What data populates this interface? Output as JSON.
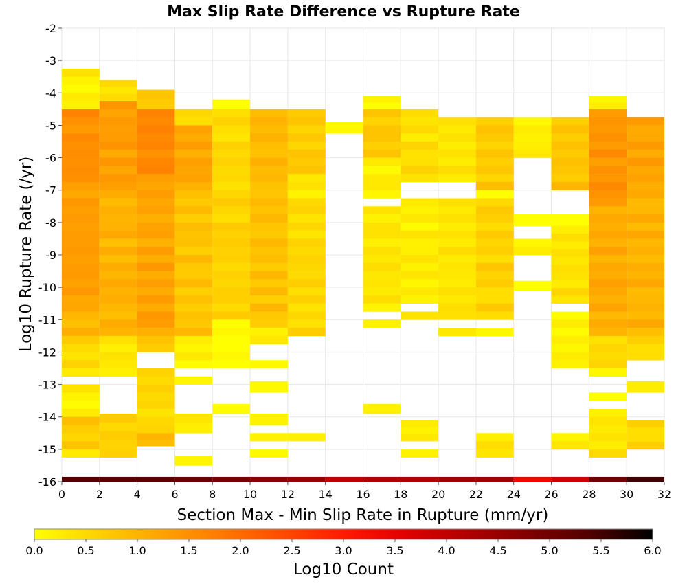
{
  "chart_data": {
    "type": "heatmap",
    "title": "Max Slip Rate Difference vs Rupture Rate",
    "xlabel": "Section Max - Min Slip Rate in Rupture (mm/yr)",
    "ylabel": "Log10 Rupture Rate (/yr)",
    "xlim": [
      0,
      32
    ],
    "ylim": [
      -16,
      -2
    ],
    "x_ticks": [
      "0",
      "2",
      "4",
      "6",
      "8",
      "10",
      "12",
      "14",
      "16",
      "18",
      "20",
      "22",
      "24",
      "26",
      "28",
      "30",
      "32"
    ],
    "y_ticks": [
      "-2",
      "-3",
      "-4",
      "-5",
      "-6",
      "-7",
      "-8",
      "-9",
      "-10",
      "-11",
      "-12",
      "-13",
      "-14",
      "-15",
      "-16"
    ],
    "x_bin_width": 2,
    "y_bin_height": 0.25,
    "grid": true,
    "colorbar": {
      "label": "Log10 Count",
      "min": 0.0,
      "max": 6.0,
      "ticks": [
        "0.0",
        "0.5",
        "1.0",
        "1.5",
        "2.0",
        "2.5",
        "3.0",
        "3.5",
        "4.0",
        "4.5",
        "5.0",
        "5.5",
        "6.0"
      ],
      "colors": [
        "#ffff00",
        "#ffd200",
        "#ffa500",
        "#ff7a00",
        "#ff4c00",
        "#ff1a00",
        "#e00000",
        "#b00000",
        "#800000",
        "#500000",
        "#000000"
      ]
    },
    "columns": [
      {
        "x0": 0,
        "ranges": [
          [
            -3.25,
            -4.5,
            0.3
          ],
          [
            -4.5,
            -6.5,
            1.6
          ],
          [
            -6.5,
            -10.5,
            1.4
          ],
          [
            -10.5,
            -11.5,
            1.1
          ],
          [
            -11.5,
            -12.5,
            0.6
          ],
          [
            -12.5,
            -12.75,
            0.2
          ],
          [
            -13,
            -14,
            0.3
          ],
          [
            -14,
            -15,
            0.8
          ],
          [
            -15,
            -15.25,
            0.2
          ]
        ]
      },
      {
        "x0": 2,
        "ranges": [
          [
            -3.6,
            -4.25,
            0.5
          ],
          [
            -4.25,
            -7,
            1.4
          ],
          [
            -7,
            -11.5,
            1.1
          ],
          [
            -11.5,
            -12.5,
            0.4
          ],
          [
            -12.5,
            -12.75,
            0.2
          ],
          [
            -13.9,
            -15.25,
            0.7
          ]
        ]
      },
      {
        "x0": 4,
        "ranges": [
          [
            -3.9,
            -4.5,
            0.8
          ],
          [
            -4.5,
            -6.5,
            1.7
          ],
          [
            -6.5,
            -11.5,
            1.3
          ],
          [
            -11.5,
            -12,
            0.8
          ],
          [
            -12.5,
            -14.5,
            0.6
          ],
          [
            -14.5,
            -14.9,
            1.0
          ]
        ]
      },
      {
        "x0": 6,
        "ranges": [
          [
            -4.5,
            -5,
            0.6
          ],
          [
            -5,
            -7,
            1.3
          ],
          [
            -7,
            -11.5,
            0.9
          ],
          [
            -11.5,
            -12.5,
            0.3
          ],
          [
            -12.75,
            -13,
            0.2
          ],
          [
            -13.9,
            -14.5,
            0.4
          ],
          [
            -15.2,
            -15.5,
            0.2
          ]
        ]
      },
      {
        "x0": 8,
        "ranges": [
          [
            -4.2,
            -4.5,
            0.1
          ],
          [
            -4.5,
            -7,
            0.6
          ],
          [
            -7,
            -11,
            0.7
          ],
          [
            -11,
            -12.5,
            0.1
          ],
          [
            -13.6,
            -13.9,
            0.2
          ]
        ]
      },
      {
        "x0": 10,
        "ranges": [
          [
            -4.5,
            -7,
            1.0
          ],
          [
            -7,
            -11.25,
            0.9
          ],
          [
            -11.25,
            -11.75,
            0.3
          ],
          [
            -12.25,
            -12.5,
            0.2
          ],
          [
            -12.9,
            -13.25,
            0.2
          ],
          [
            -13.9,
            -14.25,
            0.3
          ],
          [
            -14.5,
            -14.75,
            0.3
          ],
          [
            -15,
            -15.25,
            0.2
          ]
        ]
      },
      {
        "x0": 12,
        "ranges": [
          [
            -4.5,
            -6.5,
            0.8
          ],
          [
            -6.5,
            -7.25,
            0.4
          ],
          [
            -7.25,
            -11.5,
            0.6
          ],
          [
            -14.5,
            -14.75,
            0.3
          ]
        ]
      },
      {
        "x0": 14,
        "ranges": [
          [
            -4.9,
            -5.25,
            0.1
          ]
        ]
      },
      {
        "x0": 16,
        "ranges": [
          [
            -4.1,
            -4.5,
            0.2
          ],
          [
            -4.5,
            -6,
            0.8
          ],
          [
            -6,
            -7.25,
            0.3
          ],
          [
            -7.5,
            -10.75,
            0.4
          ],
          [
            -11,
            -11.25,
            0.2
          ],
          [
            -13.6,
            -13.9,
            0.2
          ]
        ]
      },
      {
        "x0": 18,
        "ranges": [
          [
            -4.5,
            -6.75,
            0.5
          ],
          [
            -7.25,
            -10.5,
            0.3
          ],
          [
            -10.75,
            -11,
            0.4
          ],
          [
            -14.1,
            -14.75,
            0.3
          ],
          [
            -15,
            -15.25,
            0.2
          ]
        ]
      },
      {
        "x0": 20,
        "ranges": [
          [
            -4.75,
            -6.75,
            0.4
          ],
          [
            -7.25,
            -10.75,
            0.4
          ],
          [
            -10.75,
            -11,
            0.4
          ],
          [
            -11.25,
            -11.5,
            0.3
          ]
        ]
      },
      {
        "x0": 22,
        "ranges": [
          [
            -4.75,
            -7,
            0.8
          ],
          [
            -7,
            -7.25,
            0.2
          ],
          [
            -7.25,
            -11,
            0.7
          ],
          [
            -11.25,
            -11.5,
            0.3
          ],
          [
            -14.5,
            -15.25,
            0.4
          ]
        ]
      },
      {
        "x0": 24,
        "ranges": [
          [
            -4.75,
            -6,
            0.3
          ],
          [
            -7.75,
            -8.1,
            0.2
          ],
          [
            -8.5,
            -9,
            0.3
          ],
          [
            -9.8,
            -10.1,
            0.2
          ]
        ]
      },
      {
        "x0": 26,
        "ranges": [
          [
            -4.75,
            -7,
            0.9
          ],
          [
            -7.75,
            -8.1,
            0.2
          ],
          [
            -8.1,
            -10.5,
            0.5
          ],
          [
            -10.75,
            -12.5,
            0.3
          ],
          [
            -14.5,
            -15,
            0.4
          ]
        ]
      },
      {
        "x0": 28,
        "ranges": [
          [
            -4.1,
            -4.5,
            0.3
          ],
          [
            -4.5,
            -7.5,
            1.5
          ],
          [
            -7.5,
            -11.5,
            1.2
          ],
          [
            -11.5,
            -12.5,
            0.6
          ],
          [
            -12.5,
            -12.75,
            0.3
          ],
          [
            -13.25,
            -13.5,
            0.2
          ],
          [
            -13.75,
            -15.25,
            0.4
          ]
        ]
      },
      {
        "x0": 30,
        "ranges": [
          [
            -4.75,
            -7,
            1.3
          ],
          [
            -7,
            -11.5,
            1.1
          ],
          [
            -11.5,
            -12.25,
            0.6
          ],
          [
            -12.9,
            -13.25,
            0.2
          ],
          [
            -14.1,
            -15,
            0.6
          ]
        ]
      }
    ],
    "baseline_row": {
      "y0": -15.85,
      "y1": -16,
      "values": [
        5.4,
        5.3,
        5.3,
        5.1,
        4.9,
        4.7,
        4.5,
        4.0,
        4.2,
        4.2,
        4.4,
        4.4,
        3.4,
        3.8,
        5.0,
        5.5
      ]
    }
  }
}
